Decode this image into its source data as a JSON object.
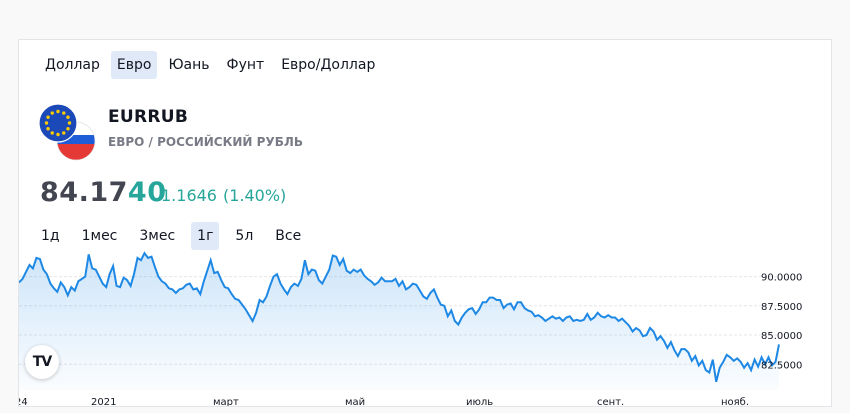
{
  "currency_tabs": [
    {
      "label": "Доллар",
      "active": false
    },
    {
      "label": "Евро",
      "active": true
    },
    {
      "label": "Юань",
      "active": false
    },
    {
      "label": "Фунт",
      "active": false
    },
    {
      "label": "Евро/Доллар",
      "active": false
    }
  ],
  "instrument": {
    "symbol": "EURRUB",
    "name": "ЕВРО / РОССИЙСКИЙ РУБЛЬ",
    "flag_icon": "eur-rub-flag-icon"
  },
  "quote": {
    "price_main": "84.17",
    "price_tail": "40",
    "change_abs": "1.1646",
    "change_pct": "(1.40%)",
    "positive_color": "#26a69a"
  },
  "ranges": [
    {
      "label": "1д",
      "active": false
    },
    {
      "label": "1мес",
      "active": false
    },
    {
      "label": "3мес",
      "active": false
    },
    {
      "label": "1г",
      "active": true
    },
    {
      "label": "5л",
      "active": false
    },
    {
      "label": "Все",
      "active": false
    }
  ],
  "chart_logo": "TV",
  "chart_data": {
    "type": "area",
    "line_color": "#1e88e5",
    "grid": true,
    "ylim": [
      80.3,
      92.7
    ],
    "ytick_labels": [
      "90.0000",
      "87.5000",
      "85.0000",
      "82.5000"
    ],
    "xtick_labels": [
      "24",
      "2021",
      "март",
      "май",
      "июль",
      "сент.",
      "нояб."
    ],
    "series": [
      {
        "values": [
          89.5,
          89.8,
          90.4,
          91.0,
          90.7,
          91.6,
          91.5,
          90.6,
          90.2,
          89.4,
          89.0,
          88.7,
          89.5,
          89.1,
          88.4,
          89.1,
          88.8,
          89.6,
          89.8,
          90.0,
          91.9,
          90.7,
          90.6,
          90.0,
          89.4,
          89.1,
          90.2,
          90.9,
          89.2,
          89.1,
          89.9,
          89.7,
          89.2,
          90.2,
          91.6,
          91.4,
          92.0,
          91.6,
          91.7,
          90.8,
          90.0,
          89.6,
          89.4,
          89.0,
          88.9,
          88.6,
          88.9,
          89.0,
          89.3,
          89.4,
          88.9,
          89.0,
          88.5,
          89.6,
          90.5,
          91.4,
          90.3,
          90.4,
          89.7,
          89.1,
          89.0,
          88.5,
          88.1,
          88.0,
          87.6,
          87.2,
          86.7,
          86.2,
          86.9,
          88.0,
          87.8,
          88.3,
          89.2,
          90.0,
          90.2,
          89.4,
          88.9,
          88.5,
          89.1,
          89.4,
          89.2,
          89.8,
          91.4,
          90.2,
          90.6,
          90.5,
          89.7,
          89.4,
          90.0,
          90.6,
          91.8,
          91.7,
          91.0,
          91.5,
          90.5,
          90.3,
          90.6,
          90.4,
          90.6,
          90.1,
          89.8,
          89.6,
          89.3,
          89.5,
          89.9,
          89.6,
          89.6,
          89.6,
          89.8,
          89.2,
          89.6,
          88.9,
          89.1,
          89.4,
          89.3,
          88.8,
          88.3,
          88.1,
          88.6,
          88.9,
          88.2,
          87.6,
          87.5,
          86.6,
          87.1,
          86.2,
          85.9,
          86.5,
          86.9,
          87.2,
          87.3,
          86.8,
          87.2,
          87.8,
          87.8,
          88.2,
          88.2,
          88.0,
          88.0,
          87.3,
          87.6,
          87.7,
          87.2,
          87.8,
          87.8,
          87.3,
          87.1,
          87.0,
          86.6,
          86.7,
          86.5,
          86.2,
          86.4,
          86.6,
          86.4,
          86.5,
          86.2,
          86.5,
          86.6,
          86.2,
          86.3,
          86.2,
          86.3,
          86.8,
          86.3,
          86.5,
          86.9,
          86.6,
          86.5,
          86.7,
          86.5,
          86.5,
          86.2,
          86.4,
          86.1,
          85.8,
          85.3,
          85.6,
          85.4,
          84.9,
          85.0,
          85.6,
          85.3,
          84.6,
          84.9,
          84.5,
          83.9,
          84.4,
          83.7,
          83.2,
          83.8,
          83.8,
          83.5,
          82.8,
          83.2,
          82.4,
          82.8,
          82.0,
          81.8,
          82.9,
          81.0,
          82.2,
          82.7,
          83.3,
          83.1,
          82.8,
          83.0,
          82.7,
          82.2,
          82.6,
          82.0,
          82.9,
          82.3,
          83.1,
          82.5,
          83.1,
          82.4,
          82.7,
          84.2
        ]
      }
    ]
  }
}
